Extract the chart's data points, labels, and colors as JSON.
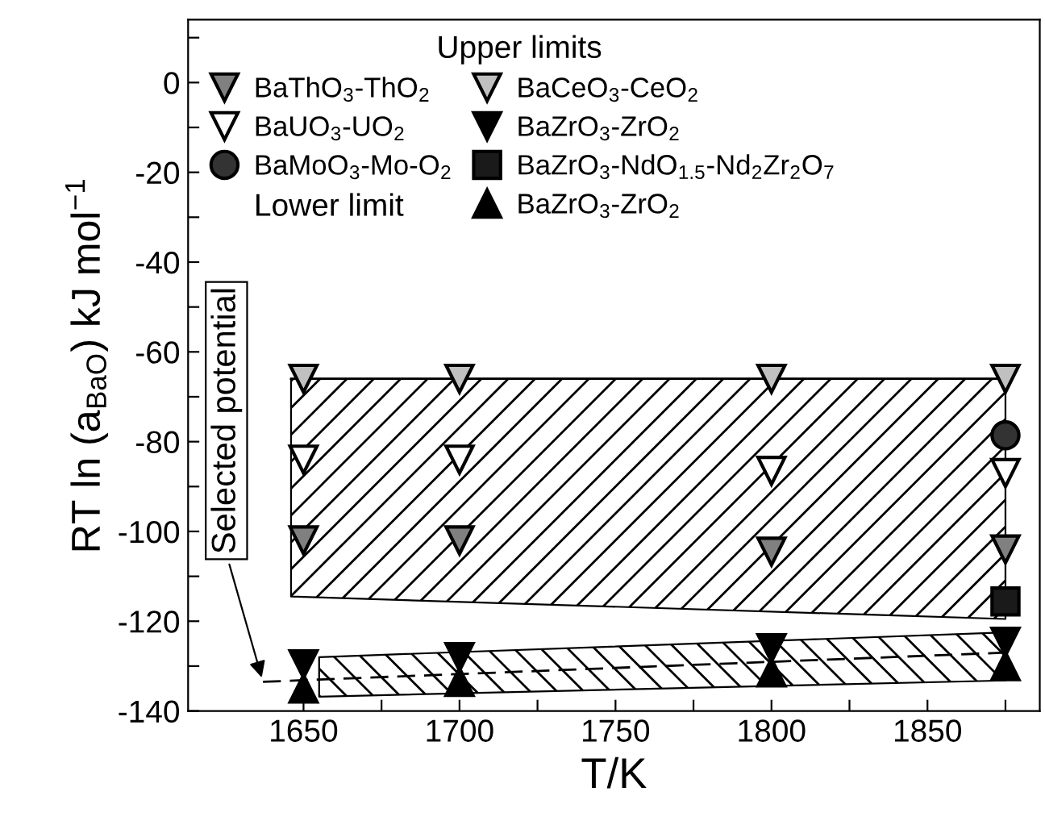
{
  "chart_data": {
    "type": "scatter",
    "xlabel": "T/K",
    "ylabel": "RT ln (a$_{BaO}$) kJ mol$^{−1}$",
    "legend_title": "Upper limits",
    "xlim": [
      1613,
      1886
    ],
    "ylim": [
      -140,
      14
    ],
    "xticks": [
      1650,
      {
        "value": 1675,
        "label": null
      },
      1700,
      {
        "value": 1725,
        "label": null
      },
      1750,
      {
        "value": 1775,
        "label": null
      },
      1800,
      {
        "value": 1825,
        "label": null
      },
      1850,
      {
        "value": 1875,
        "label": null
      }
    ],
    "yticks": [
      -140,
      {
        "value": -130,
        "label": null
      },
      -120,
      {
        "value": -110,
        "label": null
      },
      -100,
      {
        "value": -90,
        "label": null
      },
      -80,
      {
        "value": -70,
        "label": null
      },
      -60,
      {
        "value": -50,
        "label": null
      },
      -40,
      {
        "value": -30,
        "label": null
      },
      -20,
      {
        "value": -10,
        "label": null
      },
      0,
      {
        "value": 10,
        "label": null
      }
    ],
    "grid": false,
    "legend": "top left",
    "annotations": [
      "Lower limit",
      {
        "text": "Selected potential",
        "x": 1637,
        "y": -133.5
      }
    ],
    "series": [
      {
        "type": "line",
        "color": "#000000",
        "line_style": "solid",
        "marker": "none",
        "x": [
          1646,
          1875
        ],
        "values": [
          -66,
          -66
        ],
        "lower": [
          -114.5,
          -119.5
        ],
        "upper": [
          -66,
          -66
        ]
      },
      {
        "type": "line",
        "color": "#000000",
        "line_style": "dashed",
        "marker": "none",
        "x": [
          1637,
          1655,
          1875
        ],
        "values": [
          -133.5,
          -133,
          -127
        ],
        "lower": [
          null,
          -136.8,
          -133.2
        ],
        "upper": [
          null,
          -128,
          -122.5
        ]
      },
      {
        "name": "BaThO$_{3}$-ThO$_{2}$",
        "marker": "triangle",
        "color": "#808080",
        "x": [
          1650,
          1700,
          1800,
          1875
        ],
        "values": [
          -102,
          -102,
          -104.5,
          -104
        ]
      },
      {
        "name": "BaUO$_{3}$-UO$_{2}$",
        "marker": "triangle",
        "color": "#ffffff",
        "x": [
          1650,
          1700,
          1800,
          1875
        ],
        "values": [
          -84,
          -84,
          -86.5,
          -87
        ]
      },
      {
        "name": "BaMoO$_{3}$-Mo-O$_{2}$",
        "marker": "circle",
        "color": "#333333",
        "x": [
          1875
        ],
        "values": [
          -78.6
        ]
      },
      {
        "name": "BaCeO$_{3}$-CeO$_{2}$",
        "marker": "triangle",
        "color": "#c0c0c0",
        "x": [
          1650,
          1700,
          1800,
          1875
        ],
        "values": [
          -66,
          -66,
          -66,
          -66
        ]
      },
      {
        "name": "BaZrO$_{3}$-ZrO$_{2}$",
        "marker": "triangle",
        "color": "#000000",
        "x": [
          1650,
          1700,
          1800,
          1875
        ],
        "values": [
          -129.6,
          -128,
          -126,
          -124.6
        ]
      },
      {
        "name": "BaZrO$_{3}$-NdO$_{1.5}$-Nd$_{2}$Zr$_{2}$O$_{7}$",
        "marker": "square",
        "color": "#1a1a1a",
        "x": [
          1875
        ],
        "values": [
          -115.6
        ]
      },
      {
        "name": "BaZrO$_{3}$-ZrO$_{2}$",
        "marker": "triangle",
        "color": "#000000",
        "x": [
          1650,
          1700,
          1800,
          1875
        ],
        "values": [
          -135,
          -133.5,
          -131.4,
          -130
        ]
      }
    ]
  }
}
